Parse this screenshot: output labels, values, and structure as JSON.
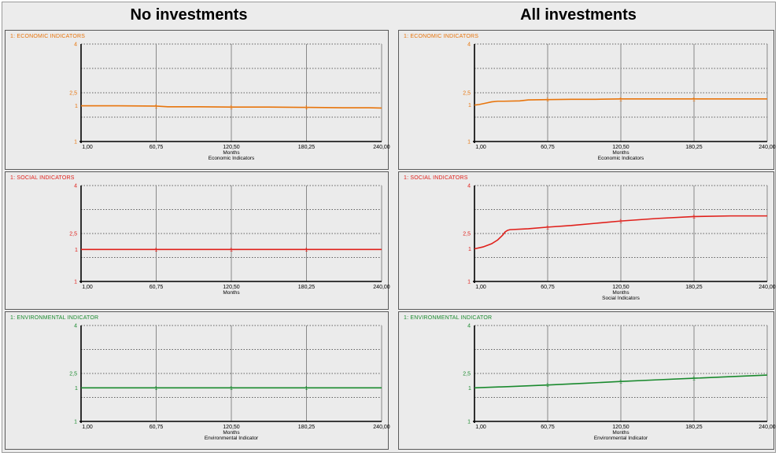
{
  "columns": {
    "left": "No investments",
    "right": "All investments"
  },
  "chart_data": [
    {
      "type": "line",
      "id": "no-econ",
      "title": "1: ECONOMIC INDICATORS",
      "xlabel": "Months",
      "xsublabel": "Economic Indicators",
      "color": "#e8750c",
      "xlim": [
        1,
        240
      ],
      "ylim": [
        1,
        4
      ],
      "xticks": [
        "1,00",
        "60,75",
        "120,50",
        "180,25",
        "240,00"
      ],
      "yticks": [
        "1",
        "2,5",
        "4"
      ],
      "x": [
        1,
        30,
        60.75,
        70,
        90,
        120.5,
        150,
        180.25,
        210,
        230,
        240
      ],
      "y": [
        2.1,
        2.1,
        2.09,
        2.07,
        2.07,
        2.06,
        2.06,
        2.05,
        2.04,
        2.04,
        2.03
      ]
    },
    {
      "type": "line",
      "id": "all-econ",
      "title": "1: ECONOMIC INDICATORS",
      "xlabel": "Months",
      "xsublabel": "Economic Indicators",
      "color": "#e8750c",
      "xlim": [
        1,
        240
      ],
      "ylim": [
        1,
        4
      ],
      "xticks": [
        "1,00",
        "60,75",
        "120,50",
        "180,25",
        "240,00"
      ],
      "yticks": [
        "1",
        "2,5",
        "4"
      ],
      "x": [
        1,
        5,
        10,
        15,
        20,
        25,
        38,
        45,
        60.75,
        80,
        100,
        120.5,
        150,
        180.25,
        210,
        240
      ],
      "y": [
        2.12,
        2.14,
        2.18,
        2.22,
        2.24,
        2.24,
        2.25,
        2.28,
        2.29,
        2.3,
        2.3,
        2.31,
        2.31,
        2.31,
        2.31,
        2.31
      ]
    },
    {
      "type": "line",
      "id": "no-social",
      "title": "1: SOCIAL INDICATORS",
      "xlabel": "Months",
      "xsublabel": "",
      "color": "#e0201b",
      "xlim": [
        1,
        240
      ],
      "ylim": [
        1,
        4
      ],
      "xticks": [
        "1,00",
        "60,75",
        "120,50",
        "180,25",
        "240,00"
      ],
      "yticks": [
        "1",
        "2,5",
        "4"
      ],
      "x": [
        1,
        60.75,
        120.5,
        180.25,
        240
      ],
      "y": [
        2.0,
        2.0,
        2.0,
        2.0,
        2.0
      ]
    },
    {
      "type": "line",
      "id": "all-social",
      "title": "1: SOCIAL INDICATORS",
      "xlabel": "Months",
      "xsublabel": "Social Indicators",
      "color": "#e0201b",
      "xlim": [
        1,
        240
      ],
      "ylim": [
        1,
        4
      ],
      "xticks": [
        "1,00",
        "60,75",
        "120,50",
        "180,25",
        "240,00"
      ],
      "yticks": [
        "1",
        "2,5",
        "4"
      ],
      "x": [
        1,
        8,
        15,
        20,
        24,
        26,
        28,
        30,
        45,
        60.75,
        80,
        100,
        120.5,
        150,
        180.25,
        210,
        240
      ],
      "y": [
        2.02,
        2.08,
        2.18,
        2.3,
        2.45,
        2.55,
        2.6,
        2.62,
        2.65,
        2.7,
        2.75,
        2.82,
        2.89,
        2.97,
        3.03,
        3.05,
        3.05
      ]
    },
    {
      "type": "line",
      "id": "no-env",
      "title": "1: ENVIRONMENTAL INDICATOR",
      "xlabel": "Months",
      "xsublabel": "Environmental Indicator",
      "color": "#1a8a2e",
      "xlim": [
        1,
        240
      ],
      "ylim": [
        1,
        4
      ],
      "xticks": [
        "1,00",
        "60,75",
        "120,50",
        "180,25",
        "240,00"
      ],
      "yticks": [
        "1",
        "2,5",
        "4"
      ],
      "x": [
        1,
        60.75,
        120.5,
        180.25,
        240
      ],
      "y": [
        2.05,
        2.05,
        2.05,
        2.05,
        2.05
      ]
    },
    {
      "type": "line",
      "id": "all-env",
      "title": "1: ENVIRONMENTAL INDICATOR",
      "xlabel": "Months",
      "xsublabel": "Environmental Indicator",
      "color": "#1a8a2e",
      "xlim": [
        1,
        240
      ],
      "ylim": [
        1,
        4
      ],
      "xticks": [
        "1,00",
        "60,75",
        "120,50",
        "180,25",
        "240,00"
      ],
      "yticks": [
        "1",
        "2,5",
        "4"
      ],
      "x": [
        1,
        30,
        60.75,
        90,
        120.5,
        150,
        180.25,
        210,
        240
      ],
      "y": [
        2.05,
        2.09,
        2.14,
        2.19,
        2.25,
        2.3,
        2.35,
        2.4,
        2.45
      ]
    }
  ]
}
